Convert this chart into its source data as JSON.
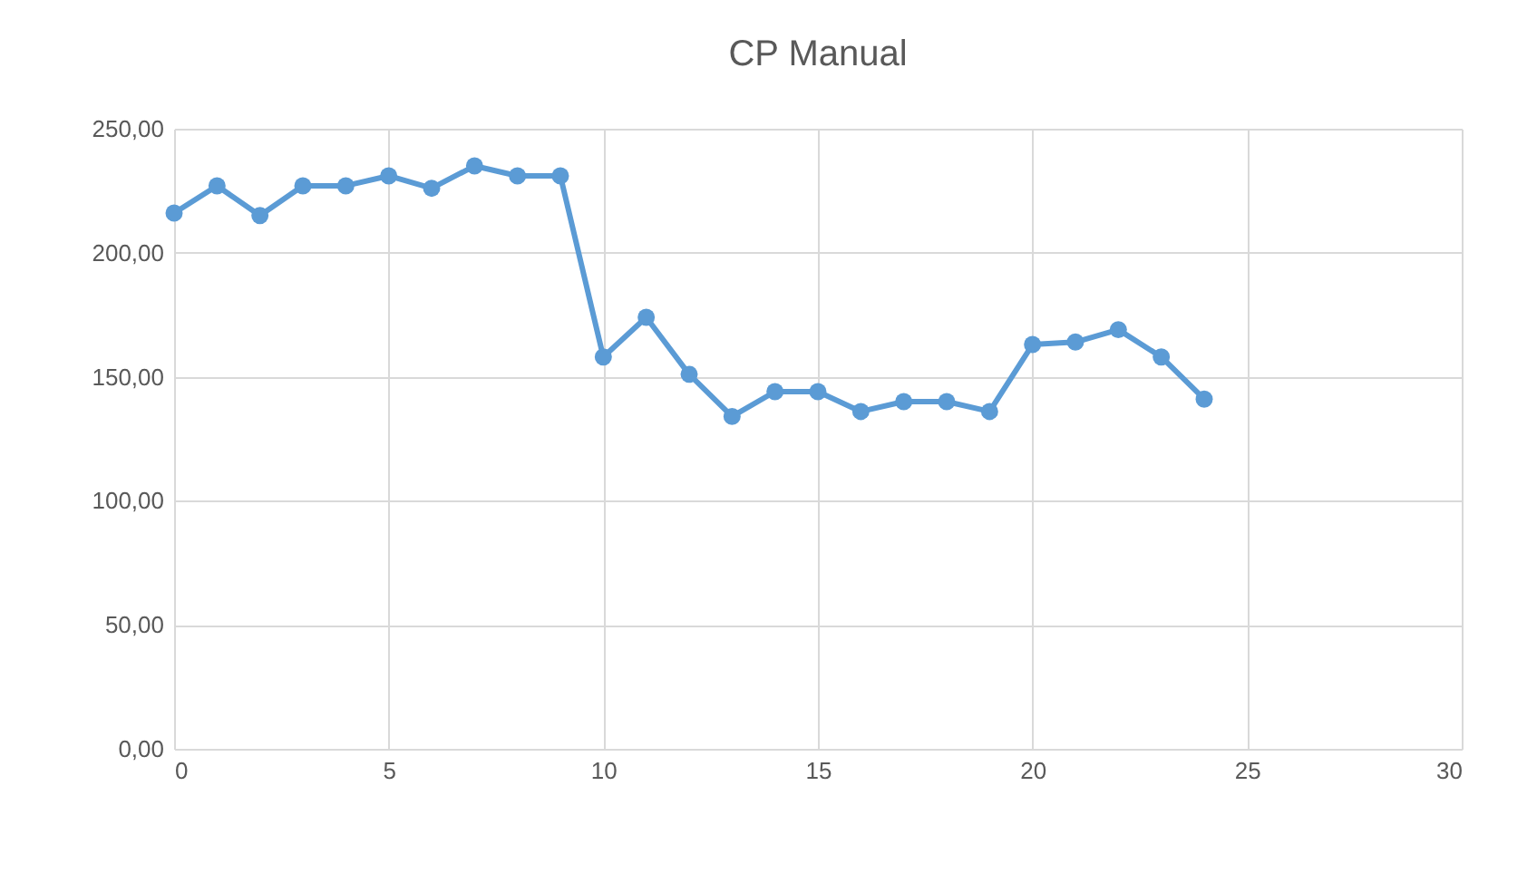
{
  "chart_data": {
    "type": "line",
    "title": "CP Manual",
    "x": [
      0,
      1,
      2,
      3,
      4,
      5,
      6,
      7,
      8,
      9,
      10,
      11,
      12,
      13,
      14,
      15,
      16,
      17,
      18,
      19,
      20,
      21,
      22,
      23,
      24
    ],
    "series": [
      {
        "color": "#5b9bd5",
        "values": [
          216,
          227,
          215,
          227,
          227,
          231,
          226,
          235,
          231,
          231,
          158,
          174,
          151,
          134,
          144,
          144,
          136,
          140,
          140,
          136,
          163,
          164,
          169,
          158,
          141
        ]
      }
    ],
    "xlim": [
      0,
      30
    ],
    "xticks": [
      0,
      5,
      10,
      15,
      20,
      25,
      30
    ],
    "ylim": [
      0,
      250
    ],
    "yticks": [
      {
        "value": 0,
        "label": "0,00"
      },
      {
        "value": 50,
        "label": "50,00"
      },
      {
        "value": 100,
        "label": "100,00"
      },
      {
        "value": 150,
        "label": "150,00"
      },
      {
        "value": 200,
        "label": "200,00"
      },
      {
        "value": 250,
        "label": "250,00"
      }
    ],
    "grid": true,
    "marker": "circle",
    "line_style": "solid"
  }
}
